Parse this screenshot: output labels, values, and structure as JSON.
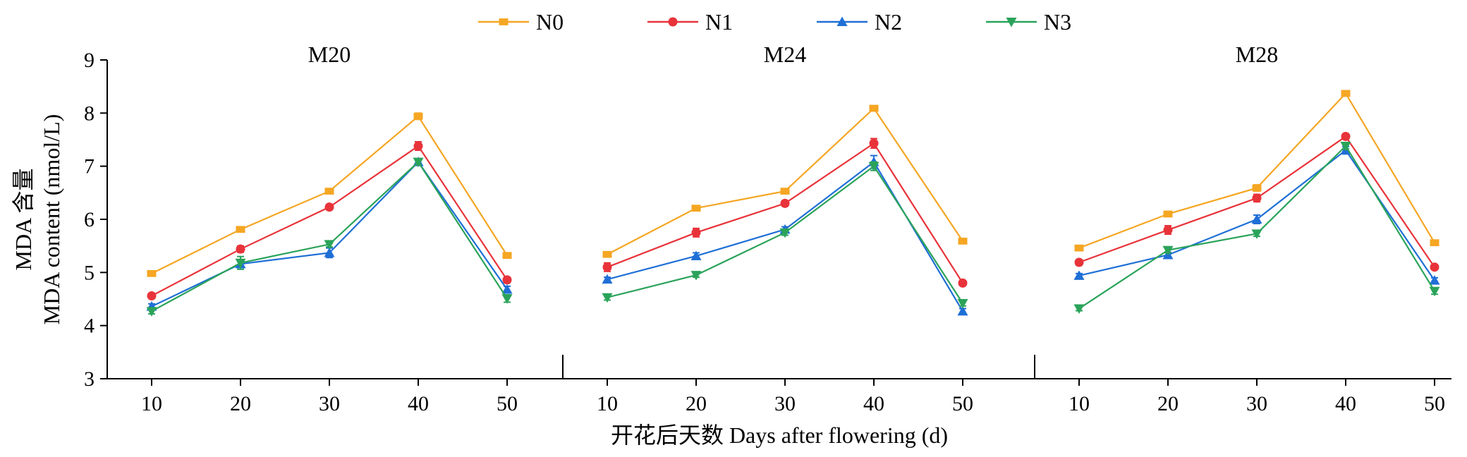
{
  "chart_data": {
    "type": "line",
    "x": [
      10,
      20,
      30,
      40,
      50
    ],
    "xlabel": "开花后天数 Days after flowering (d)",
    "ylabel_line1": "MDA 含量",
    "ylabel_line2": "MDA content (nmol/L)",
    "ylim": [
      3,
      9
    ],
    "yticks": [
      3,
      4,
      5,
      6,
      7,
      8,
      9
    ],
    "grid": false,
    "legend": {
      "placement": "top-center",
      "entries": [
        {
          "name": "N0",
          "color": "#f5a623",
          "marker": "square"
        },
        {
          "name": "N1",
          "color": "#e8333a",
          "marker": "circle"
        },
        {
          "name": "N2",
          "color": "#1f6fd6",
          "marker": "triangle-up"
        },
        {
          "name": "N3",
          "color": "#2aa35a",
          "marker": "triangle-down"
        }
      ]
    },
    "panels": [
      {
        "title": "M20",
        "series": [
          {
            "name": "N0",
            "values": [
              4.98,
              5.81,
              6.53,
              7.94,
              5.32
            ],
            "errors": [
              0.04,
              0.04,
              0.04,
              0.06,
              0.04
            ]
          },
          {
            "name": "N1",
            "values": [
              4.56,
              5.44,
              6.23,
              7.38,
              4.86
            ],
            "errors": [
              0.04,
              0.06,
              0.05,
              0.08,
              0.05
            ]
          },
          {
            "name": "N2",
            "values": [
              4.36,
              5.16,
              5.37,
              7.08,
              4.68
            ],
            "errors": [
              0.05,
              0.07,
              0.09,
              0.05,
              0.06
            ]
          },
          {
            "name": "N3",
            "values": [
              4.27,
              5.18,
              5.53,
              7.08,
              4.51
            ],
            "errors": [
              0.05,
              0.12,
              0.05,
              0.05,
              0.07
            ]
          }
        ]
      },
      {
        "title": "M24",
        "series": [
          {
            "name": "N0",
            "values": [
              5.34,
              6.21,
              6.53,
              8.09,
              5.59
            ],
            "errors": [
              0.04,
              0.04,
              0.04,
              0.05,
              0.04
            ]
          },
          {
            "name": "N1",
            "values": [
              5.1,
              5.75,
              6.3,
              7.43,
              4.8
            ],
            "errors": [
              0.08,
              0.08,
              0.05,
              0.09,
              0.04
            ]
          },
          {
            "name": "N2",
            "values": [
              4.87,
              5.31,
              5.81,
              7.08,
              4.27
            ],
            "errors": [
              0.04,
              0.06,
              0.05,
              0.12,
              0.05
            ]
          },
          {
            "name": "N3",
            "values": [
              4.53,
              4.95,
              5.75,
              7.0,
              4.42
            ],
            "errors": [
              0.05,
              0.04,
              0.05,
              0.08,
              0.05
            ]
          }
        ]
      },
      {
        "title": "M28",
        "series": [
          {
            "name": "N0",
            "values": [
              5.46,
              6.1,
              6.59,
              8.37,
              5.56
            ],
            "errors": [
              0.04,
              0.04,
              0.06,
              0.05,
              0.04
            ]
          },
          {
            "name": "N1",
            "values": [
              5.19,
              5.8,
              6.4,
              7.56,
              5.1
            ],
            "errors": [
              0.05,
              0.08,
              0.07,
              0.05,
              0.04
            ]
          },
          {
            "name": "N2",
            "values": [
              4.94,
              5.33,
              6.0,
              7.3,
              4.85
            ],
            "errors": [
              0.04,
              0.05,
              0.08,
              0.07,
              0.05
            ]
          },
          {
            "name": "N3",
            "values": [
              4.32,
              5.42,
              5.73,
              7.38,
              4.65
            ],
            "errors": [
              0.04,
              0.05,
              0.05,
              0.05,
              0.06
            ]
          }
        ]
      }
    ]
  }
}
